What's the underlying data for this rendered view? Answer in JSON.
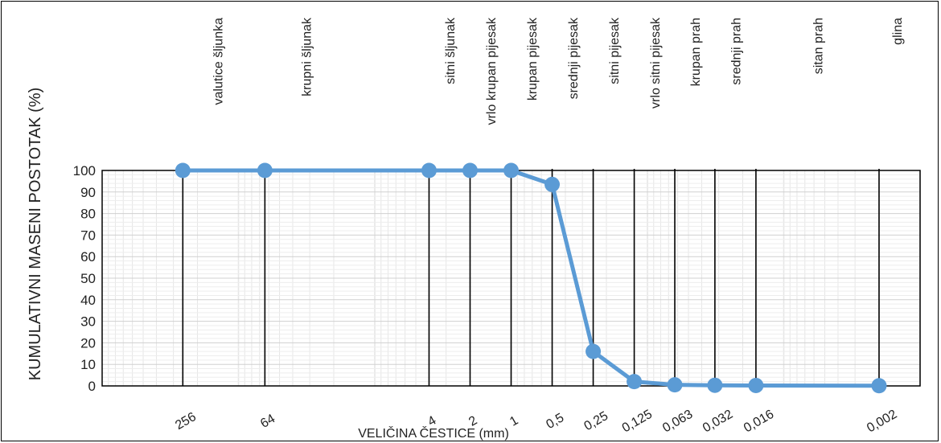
{
  "chart_data": {
    "type": "line",
    "title": "",
    "xlabel": "VELIČINA ČESTICE (mm)",
    "ylabel": "KUMULATIVNI MASENI POSTOTAK (%)",
    "x_scale": "log",
    "x_reversed": true,
    "xlim": [
      1000,
      0.001
    ],
    "ylim": [
      0,
      100
    ],
    "y_ticks": [
      "0",
      "10",
      "20",
      "30",
      "40",
      "50",
      "60",
      "70",
      "80",
      "90",
      "100"
    ],
    "grid": true,
    "legend": "none",
    "series": [
      {
        "x": [
          256,
          64,
          4,
          2,
          1,
          0.5,
          0.25,
          0.125,
          0.063,
          0.032,
          0.016,
          0.002
        ],
        "x_labels": [
          "256",
          "64",
          "4",
          "2",
          "1",
          "0,5",
          "0,25",
          "0,125",
          "0,063",
          "0,032",
          "0,016",
          "0,002"
        ],
        "values": [
          100,
          100,
          100,
          100,
          100,
          93.5,
          16,
          2,
          0.5,
          0.3,
          0.2,
          0.1
        ],
        "color": "#5B9BD5"
      }
    ],
    "class_boundaries": [
      256,
      64,
      4,
      2,
      1,
      0.5,
      0.25,
      0.125,
      0.063,
      0.032,
      0.016,
      0.002
    ],
    "class_labels": [
      {
        "label": "valutice šljunka",
        "from": 1000,
        "to": 256
      },
      {
        "label": "krupni šljunak",
        "from": 256,
        "to": 4
      },
      {
        "label": "sitni šljunak",
        "from": 4,
        "to": 2
      },
      {
        "label": "vrlo krupan pijesak",
        "from": 2,
        "to": 1
      },
      {
        "label": "krupan pijesak",
        "from": 1,
        "to": 0.5
      },
      {
        "label": "srednji pijesak",
        "from": 0.5,
        "to": 0.25
      },
      {
        "label": "sitni pijesak",
        "from": 0.25,
        "to": 0.125
      },
      {
        "label": "vrlo sitni pijesak",
        "from": 0.125,
        "to": 0.063
      },
      {
        "label": "krupan prah",
        "from": 0.063,
        "to": 0.032
      },
      {
        "label": "srednji prah",
        "from": 0.032,
        "to": 0.016
      },
      {
        "label": "sitan prah",
        "from": 0.016,
        "to": 0.002
      },
      {
        "label": "glina",
        "from": 0.002,
        "to": 0.001
      }
    ],
    "colors": {
      "line": "#5B9BD5",
      "boundary": "#000000",
      "minor_grid": "#E6E6E6"
    }
  }
}
